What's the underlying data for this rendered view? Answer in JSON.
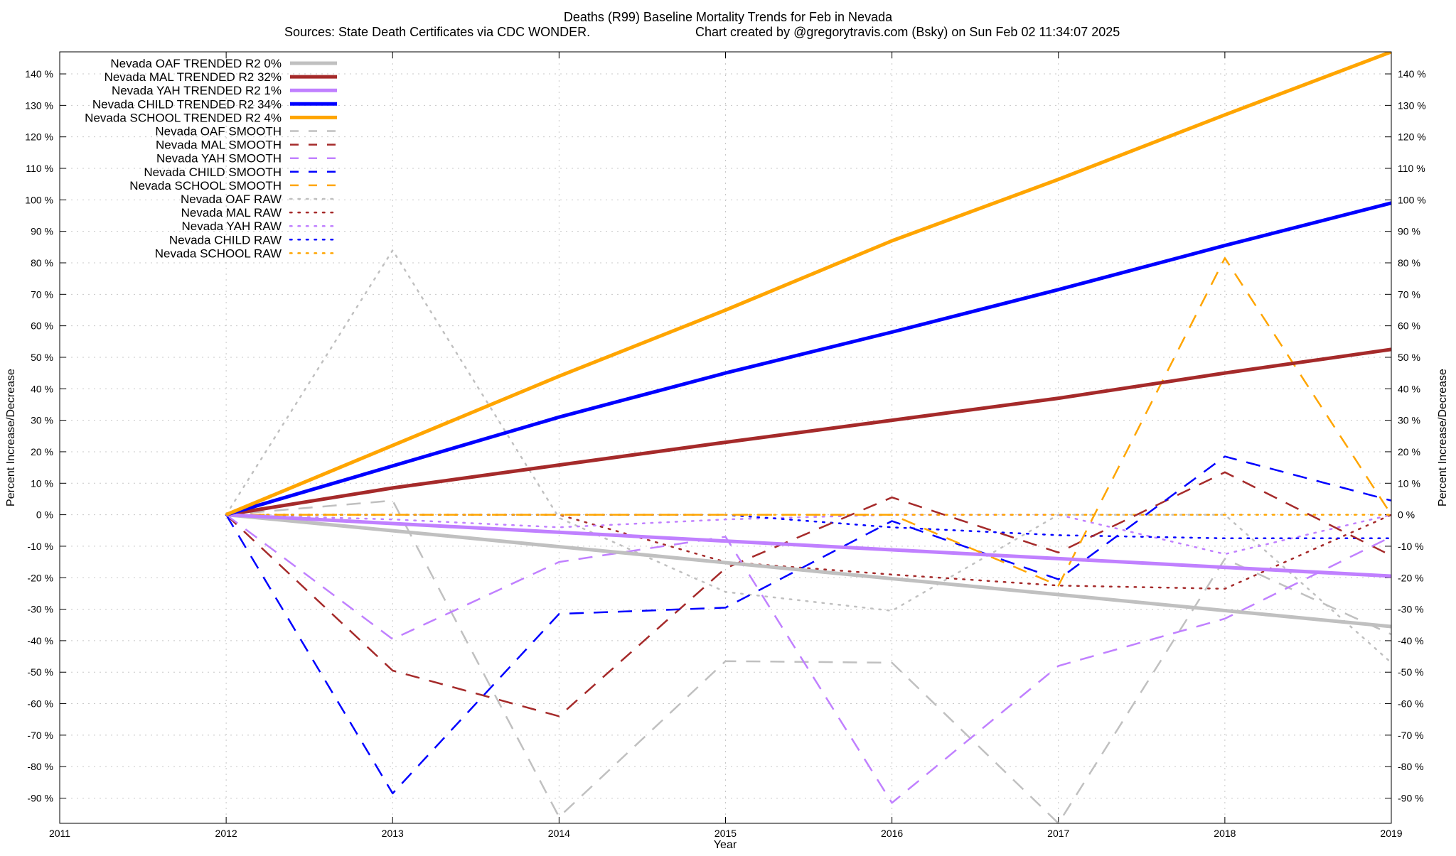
{
  "chart_data": {
    "type": "line",
    "title": "Deaths (R99)  Baseline Mortality Trends for Feb in Nevada",
    "subtitle_left": "Sources: State Death Certificates via CDC WONDER.",
    "subtitle_right": "Chart created by @gregorytravis.com (Bsky) on Sun Feb 02 11:34:07 2025",
    "xlabel": "Year",
    "ylabel": "Percent Increase/Decrease",
    "y2label": "Percent Increase/Decrease",
    "xlim": [
      2011,
      2019
    ],
    "ylim": [
      -98,
      147
    ],
    "x_ticks": [
      {
        "value": 2011,
        "label": "2011"
      },
      {
        "value": 2012,
        "label": "2012"
      },
      {
        "value": 2013,
        "label": "2013"
      },
      {
        "value": 2014,
        "label": "2014"
      },
      {
        "value": 2015,
        "label": "2015"
      },
      {
        "value": 2016,
        "label": "2016"
      },
      {
        "value": 2017,
        "label": "2017"
      },
      {
        "value": 2018,
        "label": "2018"
      },
      {
        "value": 2019,
        "label": "2019"
      }
    ],
    "y_ticks": [
      {
        "value": 140,
        "label": "140 %"
      },
      {
        "value": 130,
        "label": "130 %"
      },
      {
        "value": 120,
        "label": "120 %"
      },
      {
        "value": 110,
        "label": "110 %"
      },
      {
        "value": 100,
        "label": "100 %"
      },
      {
        "value": 90,
        "label": "90 %"
      },
      {
        "value": 80,
        "label": "80 %"
      },
      {
        "value": 70,
        "label": "70 %"
      },
      {
        "value": 60,
        "label": "60 %"
      },
      {
        "value": 50,
        "label": "50 %"
      },
      {
        "value": 40,
        "label": "40 %"
      },
      {
        "value": 30,
        "label": "30 %"
      },
      {
        "value": 20,
        "label": "20 %"
      },
      {
        "value": 10,
        "label": "10 %"
      },
      {
        "value": 0,
        "label": "0 %"
      },
      {
        "value": -10,
        "label": "-10 %"
      },
      {
        "value": -20,
        "label": "-20 %"
      },
      {
        "value": -30,
        "label": "-30 %"
      },
      {
        "value": -40,
        "label": "-40 %"
      },
      {
        "value": -50,
        "label": "-50 %"
      },
      {
        "value": -60,
        "label": "-60 %"
      },
      {
        "value": -70,
        "label": "-70 %"
      },
      {
        "value": -80,
        "label": "-80 %"
      },
      {
        "value": -90,
        "label": "-90 %"
      }
    ],
    "grid": true,
    "legend_position": "top-left",
    "series": [
      {
        "name": "Nevada OAF TRENDED R2  0%",
        "color": "#c0c0c0",
        "style": "solid-thick",
        "x": [
          2012,
          2019
        ],
        "y": [
          0,
          -35.5
        ]
      },
      {
        "name": "Nevada MAL TRENDED R2  32%",
        "color": "#a52a2a",
        "style": "solid-thick",
        "x": [
          2012,
          2013,
          2014,
          2015,
          2016,
          2017,
          2018,
          2019
        ],
        "y": [
          0,
          8.5,
          15.8,
          23,
          30,
          37,
          45,
          52.5
        ]
      },
      {
        "name": "Nevada YAH TRENDED R2  1%",
        "color": "#c080ff",
        "style": "solid-thick",
        "x": [
          2012,
          2019
        ],
        "y": [
          0,
          -19.5
        ]
      },
      {
        "name": "Nevada CHILD TRENDED R2  34%",
        "color": "#0000ff",
        "style": "solid-thick",
        "x": [
          2012,
          2013,
          2014,
          2015,
          2016,
          2017,
          2018,
          2019
        ],
        "y": [
          0,
          15.5,
          31,
          45,
          58,
          71.5,
          85.5,
          99
        ]
      },
      {
        "name": "Nevada SCHOOL TRENDED R2  4%",
        "color": "#ffa500",
        "style": "solid-thick",
        "x": [
          2012,
          2013,
          2014,
          2015,
          2016,
          2017,
          2018,
          2019
        ],
        "y": [
          0,
          22,
          44,
          65,
          87,
          106.5,
          127,
          147
        ]
      },
      {
        "name": "Nevada OAF SMOOTH",
        "color": "#c0c0c0",
        "style": "dashed",
        "x": [
          2012,
          2013,
          2014,
          2015,
          2016,
          2017,
          2018,
          2019
        ],
        "y": [
          0,
          4.5,
          -96,
          -46.5,
          -47,
          -98,
          -14,
          -38
        ]
      },
      {
        "name": "Nevada MAL SMOOTH",
        "color": "#a52a2a",
        "style": "dashed",
        "x": [
          2012,
          2013,
          2014,
          2015,
          2016,
          2017,
          2018,
          2019
        ],
        "y": [
          0,
          -49.5,
          -64,
          -17,
          5.5,
          -12,
          13.5,
          -13
        ]
      },
      {
        "name": "Nevada YAH SMOOTH",
        "color": "#c080ff",
        "style": "dashed",
        "x": [
          2012,
          2013,
          2014,
          2015,
          2016,
          2017,
          2018,
          2019
        ],
        "y": [
          0,
          -39.5,
          -15,
          -7,
          -91.5,
          -48,
          -33,
          -7
        ]
      },
      {
        "name": "Nevada CHILD SMOOTH",
        "color": "#0000ff",
        "style": "dashed",
        "x": [
          2012,
          2013,
          2014,
          2015,
          2016,
          2017,
          2018,
          2019
        ],
        "y": [
          0,
          -88.5,
          -31.5,
          -29.5,
          -2,
          -20.5,
          18.5,
          4.5
        ]
      },
      {
        "name": "Nevada SCHOOL SMOOTH",
        "color": "#ffa500",
        "style": "dashed",
        "x": [
          2012,
          2013,
          2014,
          2015,
          2016,
          2017,
          2018,
          2019
        ],
        "y": [
          0,
          0,
          0,
          0,
          0,
          -22.5,
          81.5,
          0
        ]
      },
      {
        "name": "Nevada OAF RAW",
        "color": "#c0c0c0",
        "style": "dotted",
        "x": [
          2012,
          2013,
          2014,
          2015,
          2016,
          2017,
          2018,
          2019
        ],
        "y": [
          0,
          84,
          -1,
          -24.5,
          -30.5,
          0,
          0,
          -47
        ]
      },
      {
        "name": "Nevada MAL RAW",
        "color": "#a52a2a",
        "style": "dotted",
        "x": [
          2012,
          2013,
          2014,
          2015,
          2016,
          2017,
          2018,
          2019
        ],
        "y": [
          0,
          0,
          0,
          -15,
          -19,
          -22.5,
          -23.5,
          0
        ]
      },
      {
        "name": "Nevada YAH RAW",
        "color": "#c080ff",
        "style": "dotted",
        "x": [
          2012,
          2013,
          2014,
          2015,
          2016,
          2017,
          2018,
          2019
        ],
        "y": [
          0,
          -1.5,
          -4,
          -1.5,
          0,
          0,
          -12.5,
          0
        ]
      },
      {
        "name": "Nevada CHILD RAW",
        "color": "#0000ff",
        "style": "dotted",
        "x": [
          2012,
          2013,
          2014,
          2015,
          2016,
          2017,
          2018,
          2019
        ],
        "y": [
          0,
          0,
          0,
          0,
          -4,
          -6.5,
          -7.5,
          -7.5
        ]
      },
      {
        "name": "Nevada SCHOOL RAW",
        "color": "#ffa500",
        "style": "dotted",
        "x": [
          2012,
          2013,
          2014,
          2015,
          2016,
          2017,
          2018,
          2019
        ],
        "y": [
          0,
          0,
          0,
          0,
          0,
          0,
          0,
          0
        ]
      }
    ]
  }
}
